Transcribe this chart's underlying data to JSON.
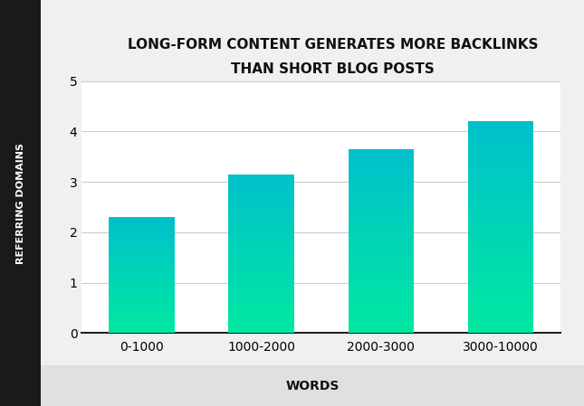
{
  "title_line1": "LONG-FORM CONTENT GENERATES MORE BACKLINKS",
  "title_line2": "THAN SHORT BLOG POSTS",
  "xlabel": "WORDS",
  "ylabel": "REFERRING DOMAINS",
  "categories": [
    "0-1000",
    "1000-2000",
    "2000-3000",
    "3000-10000"
  ],
  "values": [
    2.3,
    3.15,
    3.65,
    4.2
  ],
  "ylim": [
    0,
    5
  ],
  "yticks": [
    0,
    1,
    2,
    3,
    4,
    5
  ],
  "bar_color_top": "#00C8CC",
  "bar_color_bottom": "#00E8A0",
  "background_color": "#f0f0f0",
  "chart_bg": "#ffffff",
  "left_panel_color": "#1a1a1a",
  "grid_color": "#cccccc",
  "title_fontsize": 11,
  "label_fontsize": 10,
  "tick_fontsize": 10,
  "ylabel_fontsize": 8
}
